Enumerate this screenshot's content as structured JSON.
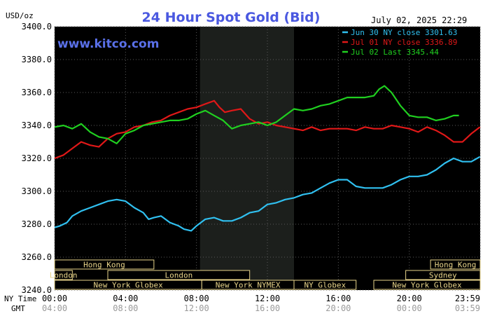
{
  "header": {
    "unit": "USD/oz",
    "title": "24 Hour Spot Gold (Bid)",
    "datetime": "July 02, 2025 22:29",
    "watermark": "www.kitco.com"
  },
  "legend": [
    {
      "label": "Jun 30 NY close 3301.63",
      "color": "#30c0f0"
    },
    {
      "label": "Jul 01 NY close 3336.89",
      "color": "#e01818"
    },
    {
      "label": "Jul 02 Last 3345.44",
      "color": "#20d020"
    }
  ],
  "axis": {
    "y_ticks": [
      "3400.0",
      "3380.0",
      "3360.0",
      "3340.0",
      "3320.0",
      "3300.0",
      "3280.0",
      "3260.0",
      "3240.0"
    ],
    "ny_row_label": "NY Time",
    "gmt_row_label": "GMT",
    "ny_ticks": [
      "00:00",
      "04:00",
      "08:00",
      "12:00",
      "16:00",
      "20:00",
      "23:59"
    ],
    "gmt_ticks": [
      "04:00",
      "08:00",
      "12:00",
      "16:00",
      "20:00",
      "00:00",
      "03:59"
    ]
  },
  "sessions": [
    {
      "label": "Hong Kong",
      "start": 0.0,
      "end": 5.6,
      "row": 0
    },
    {
      "label": "Hong Kong",
      "start": 21.2,
      "end": 24.0,
      "row": 0
    },
    {
      "label": "London",
      "start": 0.0,
      "end": 1.0,
      "row": 1
    },
    {
      "label": "London",
      "start": 3.0,
      "end": 11.0,
      "row": 1
    },
    {
      "label": "Sydney",
      "start": 19.8,
      "end": 24.0,
      "row": 1
    },
    {
      "label": "New York Globex",
      "start": 0.0,
      "end": 8.3,
      "row": 2
    },
    {
      "label": "New York NYMEX",
      "start": 8.3,
      "end": 13.5,
      "row": 2
    },
    {
      "label": "NY Globex",
      "start": 13.5,
      "end": 17.0,
      "row": 2
    },
    {
      "label": "New York Globex",
      "start": 18.0,
      "end": 24.0,
      "row": 2
    }
  ],
  "chart_data": {
    "type": "line",
    "title": "24 Hour Spot Gold (Bid)",
    "ylabel": "USD/oz",
    "xlabel": "NY Time",
    "xlim": [
      0,
      24
    ],
    "ylim": [
      3240,
      3400
    ],
    "grid": true,
    "legend_position": "top-right",
    "highlight_range": [
      8.2,
      13.5
    ],
    "series": [
      {
        "name": "Jun 30 NY close 3301.63",
        "color": "#30c0f0",
        "x": [
          0,
          0.3,
          0.7,
          1.0,
          1.5,
          2.0,
          2.5,
          3.0,
          3.5,
          4.0,
          4.5,
          5.0,
          5.3,
          5.6,
          6.0,
          6.5,
          7.0,
          7.3,
          7.7,
          8.0,
          8.5,
          9.0,
          9.5,
          10.0,
          10.5,
          11.0,
          11.5,
          12.0,
          12.5,
          13.0,
          13.5,
          14.0,
          14.5,
          15.0,
          15.5,
          16.0,
          16.5,
          17.0,
          17.5,
          18.0,
          18.5,
          19.0,
          19.5,
          20.0,
          20.5,
          21.0,
          21.5,
          22.0,
          22.5,
          23.0,
          23.5,
          23.99
        ],
        "y": [
          3278,
          3279,
          3281,
          3285,
          3288,
          3290,
          3292,
          3294,
          3295,
          3294,
          3290,
          3287,
          3283,
          3284,
          3285,
          3281,
          3279,
          3277,
          3276,
          3279,
          3283,
          3284,
          3282,
          3282,
          3284,
          3287,
          3288,
          3292,
          3293,
          3295,
          3296,
          3298,
          3299,
          3302,
          3305,
          3307,
          3307,
          3303,
          3302,
          3302,
          3302,
          3304,
          3307,
          3309,
          3309,
          3310,
          3313,
          3317,
          3320,
          3318,
          3318,
          3321
        ]
      },
      {
        "name": "Jul 01 NY close 3336.89",
        "color": "#e01818",
        "x": [
          0,
          0.5,
          1.0,
          1.5,
          2.0,
          2.5,
          3.0,
          3.5,
          4.0,
          4.5,
          5.0,
          5.5,
          6.0,
          6.5,
          7.0,
          7.5,
          8.0,
          8.5,
          9.0,
          9.3,
          9.6,
          10.0,
          10.5,
          11.0,
          11.5,
          12.0,
          12.5,
          13.0,
          13.5,
          14.0,
          14.5,
          15.0,
          15.5,
          16.0,
          16.5,
          17.0,
          17.5,
          18.0,
          18.5,
          19.0,
          19.5,
          20.0,
          20.5,
          21.0,
          21.5,
          22.0,
          22.5,
          23.0,
          23.5,
          23.99
        ],
        "y": [
          3320,
          3322,
          3326,
          3330,
          3328,
          3327,
          3332,
          3335,
          3336,
          3339,
          3340,
          3342,
          3343,
          3346,
          3348,
          3350,
          3351,
          3353,
          3355,
          3351,
          3348,
          3349,
          3350,
          3344,
          3341,
          3342,
          3340,
          3339,
          3338,
          3337,
          3339,
          3337,
          3338,
          3338,
          3338,
          3337,
          3339,
          3338,
          3338,
          3340,
          3339,
          3338,
          3336,
          3339,
          3337,
          3334,
          3330,
          3330,
          3335,
          3339
        ]
      },
      {
        "name": "Jul 02 Last 3345.44",
        "color": "#20d020",
        "x": [
          0,
          0.5,
          1.0,
          1.5,
          2.0,
          2.5,
          3.0,
          3.5,
          4.0,
          4.5,
          5.0,
          5.5,
          6.0,
          6.5,
          7.0,
          7.5,
          8.0,
          8.5,
          9.0,
          9.5,
          10.0,
          10.5,
          11.0,
          11.5,
          12.0,
          12.5,
          13.0,
          13.5,
          14.0,
          14.5,
          15.0,
          15.5,
          16.0,
          16.5,
          17.0,
          17.5,
          18.0,
          18.3,
          18.6,
          19.0,
          19.5,
          20.0,
          20.5,
          21.0,
          21.5,
          22.0,
          22.5,
          22.8
        ],
        "y": [
          3339,
          3340,
          3338,
          3341,
          3336,
          3333,
          3332,
          3329,
          3335,
          3337,
          3340,
          3341,
          3342,
          3343,
          3343,
          3344,
          3347,
          3349,
          3346,
          3343,
          3338,
          3340,
          3341,
          3342,
          3340,
          3342,
          3346,
          3350,
          3349,
          3350,
          3352,
          3353,
          3355,
          3357,
          3357,
          3357,
          3358,
          3362,
          3364,
          3360,
          3352,
          3346,
          3345,
          3345,
          3343,
          3344,
          3346,
          3346
        ]
      }
    ]
  }
}
